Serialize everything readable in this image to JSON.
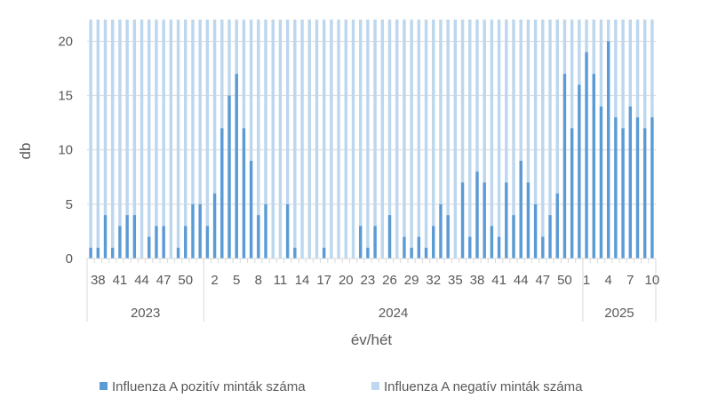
{
  "chart_data": {
    "type": "bar",
    "stacked": true,
    "title": "",
    "xlabel": "év/hét",
    "ylabel": "db",
    "ylim": [
      0,
      22
    ],
    "yticks": [
      0,
      5,
      10,
      15,
      20
    ],
    "grid": "horizontal",
    "legend_position": "bottom",
    "colors": {
      "positive": "#5B9BD5",
      "negative": "#BDD7EE",
      "axis": "#D9D9D9",
      "grid": "#D9D9D9",
      "text": "#595959"
    },
    "years": [
      {
        "label": "2023",
        "start": 0,
        "count": 16
      },
      {
        "label": "2024",
        "start": 16,
        "count": 52
      },
      {
        "label": "2025",
        "start": 68,
        "count": 10
      }
    ],
    "categories": [
      "2023/37",
      "2023/38",
      "2023/39",
      "2023/40",
      "2023/41",
      "2023/42",
      "2023/43",
      "2023/44",
      "2023/45",
      "2023/46",
      "2023/47",
      "2023/48",
      "2023/49",
      "2023/50",
      "2023/51",
      "2023/52",
      "2024/1",
      "2024/2",
      "2024/3",
      "2024/4",
      "2024/5",
      "2024/6",
      "2024/7",
      "2024/8",
      "2024/9",
      "2024/10",
      "2024/11",
      "2024/12",
      "2024/13",
      "2024/14",
      "2024/15",
      "2024/16",
      "2024/17",
      "2024/18",
      "2024/19",
      "2024/20",
      "2024/21",
      "2024/22",
      "2024/23",
      "2024/24",
      "2024/25",
      "2024/26",
      "2024/27",
      "2024/28",
      "2024/29",
      "2024/30",
      "2024/31",
      "2024/32",
      "2024/33",
      "2024/34",
      "2024/35",
      "2024/36",
      "2024/37",
      "2024/38",
      "2024/39",
      "2024/40",
      "2024/41",
      "2024/42",
      "2024/43",
      "2024/44",
      "2024/45",
      "2024/46",
      "2024/47",
      "2024/48",
      "2024/49",
      "2024/50",
      "2024/51",
      "2024/52",
      "2025/1",
      "2025/2",
      "2025/3",
      "2025/4",
      "2025/5",
      "2025/6",
      "2025/7",
      "2025/8",
      "2025/9",
      "2025/10"
    ],
    "tick_labels": [
      {
        "index": 1,
        "label": "38"
      },
      {
        "index": 4,
        "label": "41"
      },
      {
        "index": 7,
        "label": "44"
      },
      {
        "index": 10,
        "label": "47"
      },
      {
        "index": 13,
        "label": "50"
      },
      {
        "index": 17,
        "label": "2"
      },
      {
        "index": 20,
        "label": "5"
      },
      {
        "index": 23,
        "label": "8"
      },
      {
        "index": 26,
        "label": "11"
      },
      {
        "index": 29,
        "label": "14"
      },
      {
        "index": 32,
        "label": "17"
      },
      {
        "index": 35,
        "label": "20"
      },
      {
        "index": 38,
        "label": "23"
      },
      {
        "index": 41,
        "label": "26"
      },
      {
        "index": 44,
        "label": "29"
      },
      {
        "index": 47,
        "label": "32"
      },
      {
        "index": 50,
        "label": "35"
      },
      {
        "index": 53,
        "label": "38"
      },
      {
        "index": 56,
        "label": "41"
      },
      {
        "index": 59,
        "label": "44"
      },
      {
        "index": 62,
        "label": "47"
      },
      {
        "index": 65,
        "label": "50"
      },
      {
        "index": 68,
        "label": "1"
      },
      {
        "index": 71,
        "label": "4"
      },
      {
        "index": 74,
        "label": "7"
      },
      {
        "index": 77,
        "label": "10"
      }
    ],
    "series": [
      {
        "name": "Influenza A pozitív minták száma",
        "values": [
          1,
          1,
          4,
          1,
          3,
          4,
          4,
          0,
          2,
          3,
          3,
          0,
          1,
          3,
          5,
          5,
          3,
          6,
          12,
          15,
          17,
          12,
          9,
          4,
          5,
          0,
          0,
          5,
          1,
          0,
          0,
          0,
          1,
          0,
          0,
          0,
          0,
          3,
          1,
          3,
          0,
          4,
          0,
          2,
          1,
          2,
          1,
          3,
          5,
          4,
          0,
          7,
          2,
          8,
          7,
          3,
          2,
          7,
          4,
          9,
          7,
          5,
          2,
          4,
          6,
          17,
          12,
          16,
          19,
          17,
          14,
          20,
          13,
          12,
          14,
          13,
          12,
          13
        ]
      },
      {
        "name": "Influenza A negatív minták száma",
        "values": [
          21,
          21,
          18,
          21,
          19,
          18,
          18,
          22,
          20,
          19,
          19,
          22,
          21,
          19,
          17,
          17,
          19,
          16,
          10,
          7,
          5,
          10,
          13,
          18,
          17,
          22,
          22,
          17,
          21,
          22,
          22,
          22,
          21,
          22,
          22,
          22,
          22,
          19,
          21,
          19,
          22,
          18,
          22,
          20,
          21,
          20,
          21,
          19,
          17,
          18,
          22,
          15,
          20,
          14,
          15,
          19,
          20,
          15,
          18,
          13,
          15,
          17,
          20,
          18,
          16,
          5,
          10,
          6,
          3,
          5,
          8,
          2,
          9,
          10,
          8,
          9,
          10,
          9
        ]
      }
    ]
  }
}
